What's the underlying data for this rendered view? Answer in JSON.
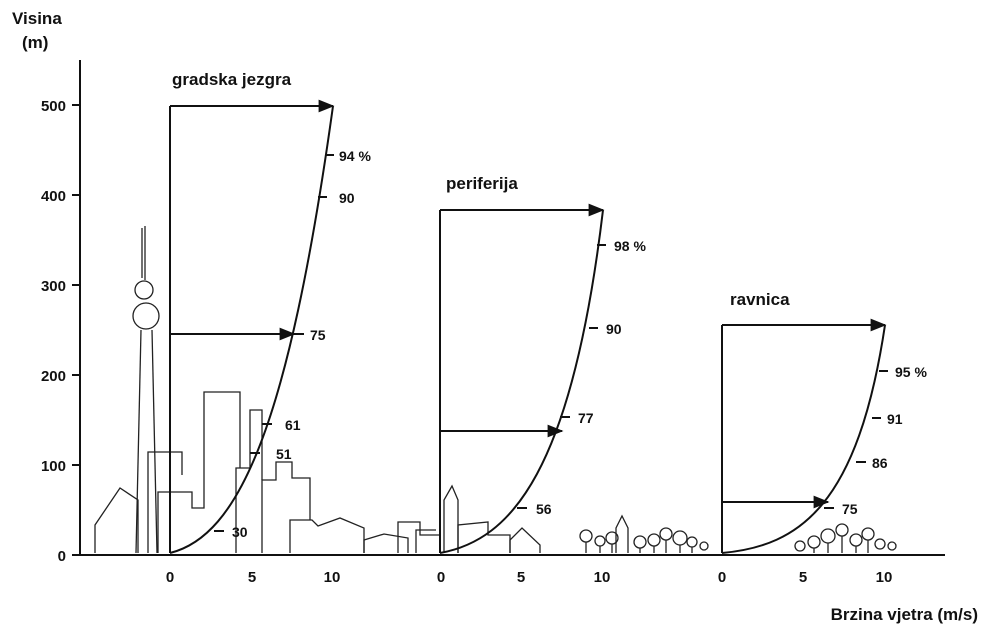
{
  "axes": {
    "y_title_line1": "Visina",
    "y_title_line2": "(m)",
    "x_title": "Brzina vjetra (m/s)",
    "y_ticks": [
      "0",
      "100",
      "200",
      "300",
      "400",
      "500"
    ],
    "x_ticks": [
      "0",
      "5",
      "10"
    ]
  },
  "profiles": [
    {
      "title": "gradska jezgra",
      "labels": [
        "94 %",
        "90",
        "75",
        "61",
        "51",
        "30"
      ]
    },
    {
      "title": "periferija",
      "labels": [
        "98 %",
        "90",
        "77",
        "56"
      ]
    },
    {
      "title": "ravnica",
      "labels": [
        "95 %",
        "91",
        "86",
        "75"
      ]
    }
  ]
}
